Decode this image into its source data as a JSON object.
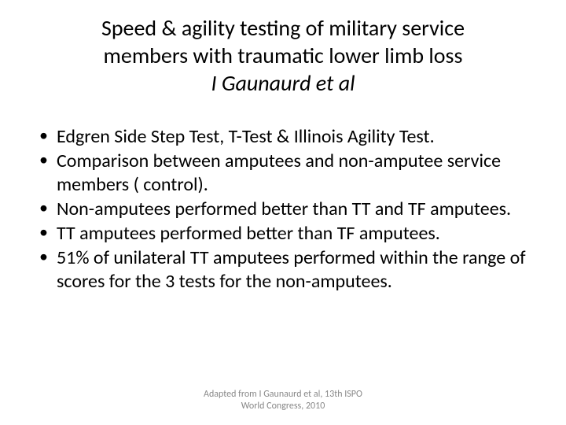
{
  "slide": {
    "title_line1": "Speed & agility testing of military service",
    "title_line2": "members with traumatic lower limb loss",
    "title_author": "I Gaunaurd et al",
    "bullets": [
      "Edgren Side Step Test, T-Test & Illinois Agility Test.",
      "Comparison between amputees and non-amputee service members ( control).",
      "Non-amputees performed better than TT and TF amputees.",
      "TT amputees performed better than TF amputees.",
      "51% of unilateral TT amputees performed within the range of scores for the 3 tests for the non-amputees."
    ],
    "footer_line1": "Adapted from I Gaunaurd et al, 13th ISPO",
    "footer_line2": "World Congress, 2010"
  },
  "styles": {
    "background_color": "#ffffff",
    "text_color": "#000000",
    "footer_color": "#888888",
    "title_fontsize": 28,
    "body_fontsize": 24,
    "footer_fontsize": 12,
    "font_family": "Calibri"
  }
}
